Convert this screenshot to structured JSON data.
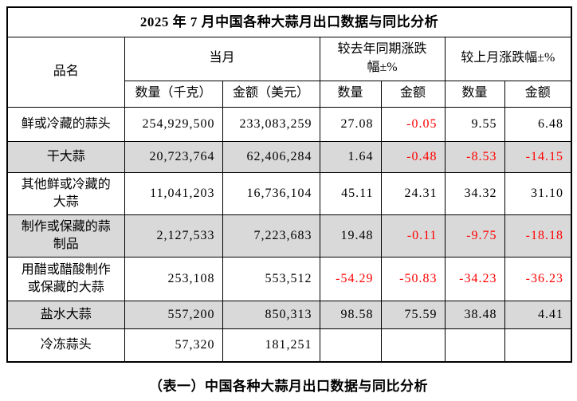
{
  "title": "2025 年 7 月中国各种大蒜月出口数据与同比分析",
  "caption": "（表一）中国各种大蒜月出口数据与同比分析",
  "colors": {
    "negative_value": "#ff0000",
    "shaded_row": "#d9d9d9",
    "border": "#000000",
    "background": "#ffffff"
  },
  "table": {
    "col_product": "品名",
    "group_current_month": "当月",
    "group_yoy": "较去年同期涨跌\n幅±%",
    "group_mom": "较上月涨跌幅±%",
    "sub_qty_kg": "数量（千克）",
    "sub_amount_usd": "金额（美元）",
    "sub_qty": "数量",
    "sub_amount": "金额",
    "rows": [
      {
        "name": "鲜或冷藏的蒜头",
        "qty": "254,929,500",
        "amount": "233,083,259",
        "yoy_qty": "27.08",
        "yoy_amount": "-0.05",
        "mom_qty": "9.55",
        "mom_amount": "6.48"
      },
      {
        "name": "干大蒜",
        "qty": "20,723,764",
        "amount": "62,406,284",
        "yoy_qty": "1.64",
        "yoy_amount": "-0.48",
        "mom_qty": "-8.53",
        "mom_amount": "-14.15"
      },
      {
        "name": "其他鲜或冷藏的\n大蒜",
        "qty": "11,041,203",
        "amount": "16,736,104",
        "yoy_qty": "45.11",
        "yoy_amount": "24.31",
        "mom_qty": "34.32",
        "mom_amount": "31.10"
      },
      {
        "name": "制作或保藏的蒜\n制品",
        "qty": "2,127,533",
        "amount": "7,223,683",
        "yoy_qty": "19.48",
        "yoy_amount": "-0.11",
        "mom_qty": "-9.75",
        "mom_amount": "-18.18"
      },
      {
        "name": "用醋或醋酸制作\n或保藏的大蒜",
        "qty": "253,108",
        "amount": "553,512",
        "yoy_qty": "-54.29",
        "yoy_amount": "-50.83",
        "mom_qty": "-34.23",
        "mom_amount": "-36.23"
      },
      {
        "name": "盐水大蒜",
        "qty": "557,200",
        "amount": "850,313",
        "yoy_qty": "98.58",
        "yoy_amount": "75.59",
        "mom_qty": "38.48",
        "mom_amount": "4.41"
      },
      {
        "name": "冷冻蒜头",
        "qty": "57,320",
        "amount": "181,251",
        "yoy_qty": "",
        "yoy_amount": "",
        "mom_qty": "",
        "mom_amount": ""
      }
    ]
  }
}
